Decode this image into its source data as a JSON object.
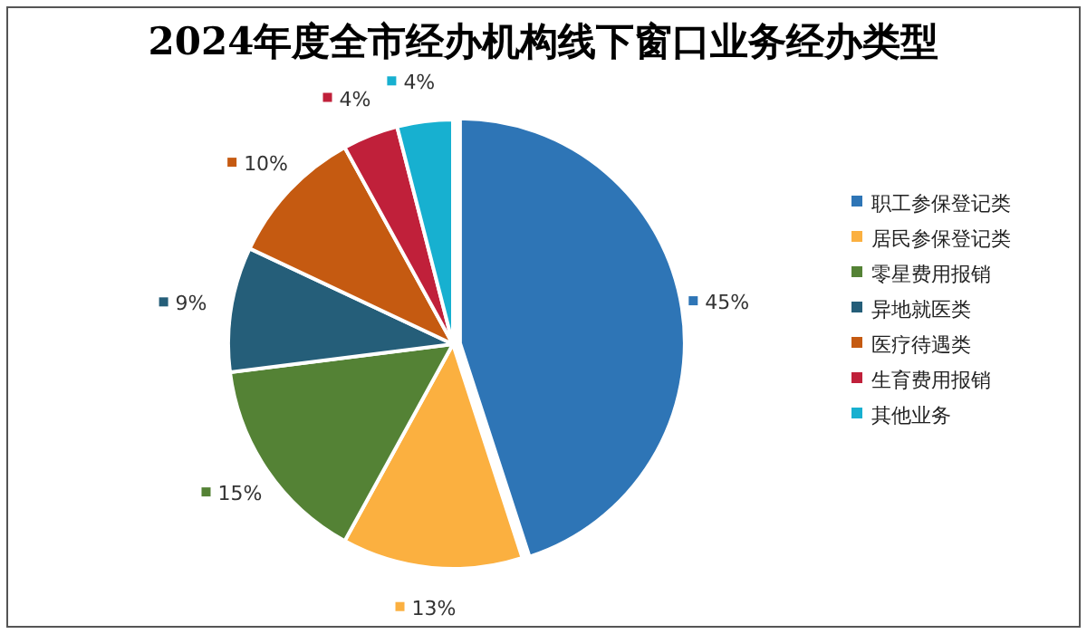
{
  "chart_data": {
    "type": "pie",
    "title": "2024年度全市经办机构线下窗口业务经办类型",
    "categories": [
      "职工参保登记类",
      "居民参保登记类",
      "零星费用报销",
      "异地就医类",
      "医疗待遇类",
      "生育费用报销",
      "其他业务"
    ],
    "values": [
      45,
      13,
      15,
      9,
      10,
      4,
      4
    ],
    "colors": [
      "#2e75b6",
      "#fbb040",
      "#548235",
      "#255e79",
      "#c55a11",
      "#c0203a",
      "#17b0d0"
    ],
    "value_labels": [
      "45%",
      "13%",
      "15%",
      "9%",
      "10%",
      "4%",
      "4%"
    ],
    "legend": "right"
  }
}
